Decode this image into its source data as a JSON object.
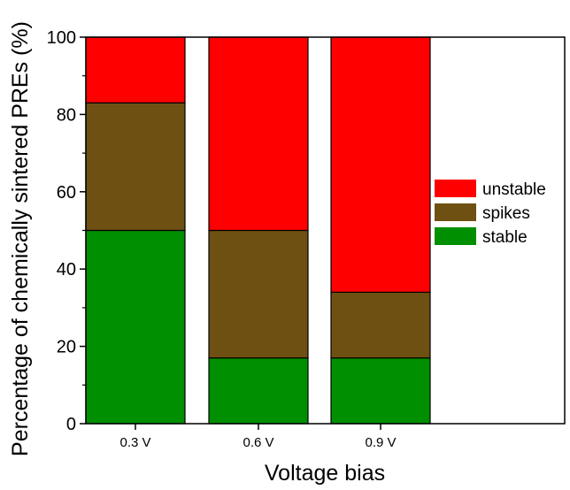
{
  "chart_data": {
    "type": "bar",
    "stacked": true,
    "categories": [
      "0.3 V",
      "0.6 V",
      "0.9 V"
    ],
    "series": [
      {
        "name": "stable",
        "values": [
          50,
          17,
          17
        ],
        "color": "#008f00"
      },
      {
        "name": "spikes",
        "values": [
          33,
          33,
          17
        ],
        "color": "#6e5012"
      },
      {
        "name": "unstable",
        "values": [
          17,
          50,
          66
        ],
        "color": "#ff0000"
      }
    ],
    "legend_order": [
      "unstable",
      "spikes",
      "stable"
    ],
    "xlabel": "Voltage bias",
    "ylabel": "Percentage of chemically sintered PREs (%)",
    "ylim": [
      0,
      100
    ],
    "yticks": [
      0,
      20,
      40,
      60,
      80,
      100
    ],
    "grid": false,
    "legend_position": "right"
  }
}
